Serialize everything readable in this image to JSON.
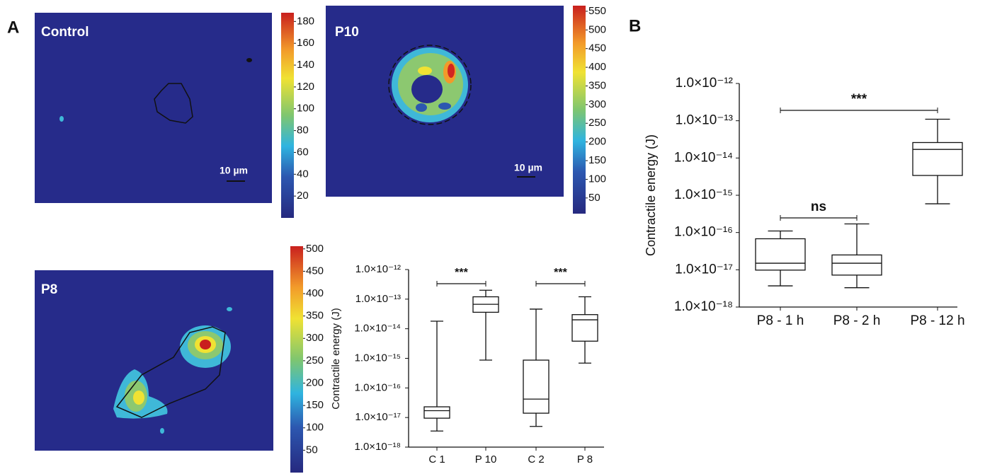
{
  "panel_labels": [
    "A",
    "B"
  ],
  "chart_data": [
    {
      "type": "heatmap",
      "title": "Control",
      "scale_bar": "10 µm",
      "colorbar_lim": [
        0,
        188
      ],
      "colorbar_ticks": [
        20,
        40,
        60,
        80,
        100,
        120,
        140,
        160,
        180
      ]
    },
    {
      "type": "heatmap",
      "title": "P10",
      "scale_bar": "10 µm",
      "colorbar_lim": [
        8,
        565
      ],
      "colorbar_ticks": [
        50,
        100,
        150,
        200,
        250,
        300,
        350,
        400,
        450,
        500,
        550
      ]
    },
    {
      "type": "heatmap",
      "title": "P8",
      "colorbar_lim": [
        0,
        506
      ],
      "colorbar_ticks": [
        50,
        100,
        150,
        200,
        250,
        300,
        350,
        400,
        450,
        500
      ]
    },
    {
      "type": "box",
      "ylabel": "Contractile energy (J)",
      "log_scale": true,
      "categories": [
        "C 1",
        "P 10",
        "C 2",
        "P 8"
      ],
      "min": [
        3.5e-18,
        8.7e-16,
        5e-18,
        6.9e-16
      ],
      "q1": [
        9.5e-18,
        3.6e-14,
        1.4e-17,
        3.8e-15
      ],
      "median": [
        1.7e-17,
        6.7e-14,
        4.2e-17,
        2e-14
      ],
      "q3": [
        2.3e-17,
        1.2e-13,
        8.7e-16,
        3e-14
      ],
      "max": [
        1.8e-14,
        2e-13,
        4.6e-14,
        1.2e-13
      ],
      "ylim": [
        1e-18,
        1e-12
      ],
      "yticks": [
        {
          "value": 1e-12,
          "label": "1.0×10⁻¹²"
        },
        {
          "value": 1e-13,
          "label": "1.0×10⁻¹³"
        },
        {
          "value": 1e-14,
          "label": "1.0×10⁻¹⁴"
        },
        {
          "value": 1e-15,
          "label": "1.0×10⁻¹⁵"
        },
        {
          "value": 1e-16,
          "label": "1.0×10⁻¹⁶"
        },
        {
          "value": 1e-17,
          "label": "1.0×10⁻¹⁷"
        },
        {
          "value": 1e-18,
          "label": "1.0×10⁻¹⁸"
        }
      ],
      "annotations": [
        {
          "text": "***",
          "between": [
            0,
            1
          ]
        },
        {
          "text": "***",
          "between": [
            2,
            3
          ]
        }
      ]
    },
    {
      "type": "box",
      "ylabel": "Contractile energy (J)",
      "log_scale": true,
      "categories": [
        "P8 - 1 h",
        "P8 - 2 h",
        "P8 - 12 h"
      ],
      "min": [
        3.7e-18,
        3.3e-18,
        5.9e-16
      ],
      "q1": [
        9.8e-18,
        7.2e-18,
        3.4e-15
      ],
      "median": [
        1.5e-17,
        1.5e-17,
        1.7e-14
      ],
      "q3": [
        6.8e-17,
        2.5e-17,
        2.6e-14
      ],
      "max": [
        1.1e-16,
        1.7e-16,
        1.1e-13
      ],
      "ylim": [
        1e-18,
        1e-12
      ],
      "yticks": [
        {
          "value": 1e-12,
          "label": "1.0×10⁻¹²"
        },
        {
          "value": 1e-13,
          "label": "1.0×10⁻¹³"
        },
        {
          "value": 1e-14,
          "label": "1.0×10⁻¹⁴"
        },
        {
          "value": 1e-15,
          "label": "1.0×10⁻¹⁵"
        },
        {
          "value": 1e-16,
          "label": "1.0×10⁻¹⁶"
        },
        {
          "value": 1e-17,
          "label": "1.0×10⁻¹⁷"
        },
        {
          "value": 1e-18,
          "label": "1.0×10⁻¹⁸"
        }
      ],
      "annotations": [
        {
          "text": "ns",
          "between": [
            0,
            1
          ]
        },
        {
          "text": "***",
          "between": [
            0,
            2
          ]
        }
      ]
    }
  ]
}
